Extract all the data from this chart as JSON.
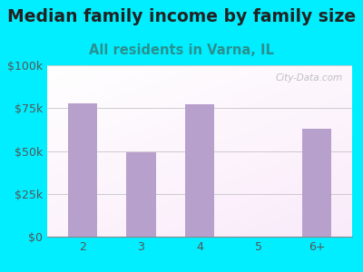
{
  "title": "Median family income by family size",
  "subtitle": "All residents in Varna, IL",
  "categories": [
    "2",
    "3",
    "4",
    "5",
    "6+"
  ],
  "values": [
    78000,
    49000,
    77000,
    0,
    63000
  ],
  "bar_color": "#b8a0cc",
  "background_color": "#00eeff",
  "title_color": "#222222",
  "subtitle_color": "#2a9090",
  "tick_color": "#555555",
  "ylim": [
    0,
    100000
  ],
  "yticks": [
    0,
    25000,
    50000,
    75000,
    100000
  ],
  "ytick_labels": [
    "$0",
    "$25k",
    "$50k",
    "$75k",
    "$100k"
  ],
  "title_fontsize": 13.5,
  "subtitle_fontsize": 10.5,
  "tick_fontsize": 9
}
